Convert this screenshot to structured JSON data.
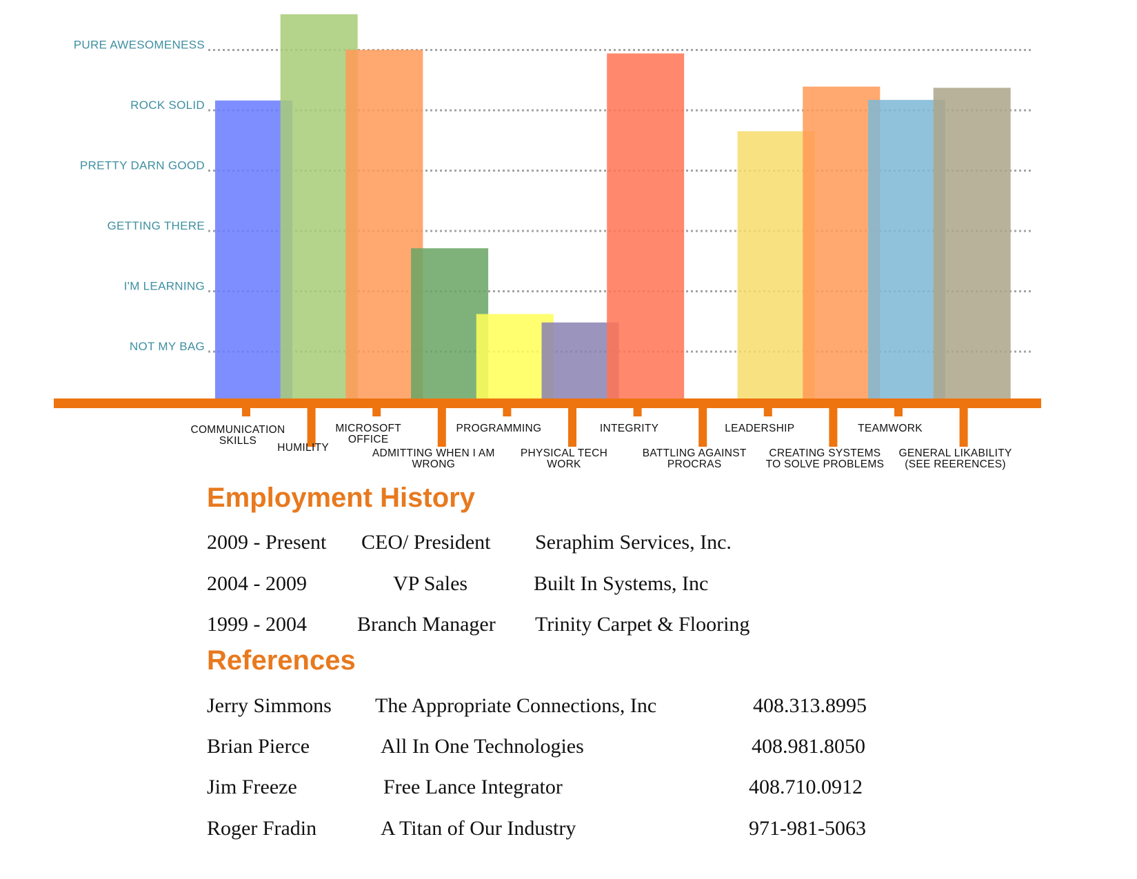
{
  "chart_data": {
    "type": "bar",
    "y_levels": [
      "NOT MY BAG",
      "I'M LEARNING",
      "GETTING THERE",
      "PRETTY DARN GOOD",
      "ROCK SOLID",
      "PURE AWESOMENESS"
    ],
    "ylim": [
      0,
      6.4
    ],
    "grid": true,
    "bars": [
      {
        "label_lines": [
          "COMMUNICATION",
          "SKILLS"
        ],
        "value": 4.94,
        "color": "#6a7bff"
      },
      {
        "label_lines": [
          "HUMILITY"
        ],
        "value": 6.37,
        "color": "#a8cc78"
      },
      {
        "label_lines": [
          "MICROSOFT",
          "OFFICE"
        ],
        "value": 5.78,
        "color": "#ff9a57"
      },
      {
        "label_lines": [
          "ADMITTING WHEN I AM",
          "WRONG"
        ],
        "value": 2.49,
        "color": "#6aa564"
      },
      {
        "label_lines": [
          "PROGRAMMING"
        ],
        "value": 1.4,
        "color": "#ffff59"
      },
      {
        "label_lines": [
          "PHYSICAL TECH",
          "WORK"
        ],
        "value": 1.26,
        "color": "#8a82b2"
      },
      {
        "label_lines": [
          "INTEGRITY"
        ],
        "value": 5.72,
        "color": "#ff7455"
      },
      {
        "label_lines": [
          "BATTLING AGAINST",
          "PROCRAS"
        ],
        "value": 0,
        "color": "#ffffff"
      },
      {
        "label_lines": [
          "LEADERSHIP"
        ],
        "value": 4.43,
        "color": "#f6dc6c"
      },
      {
        "label_lines": [
          "CREATING SYSTEMS",
          "TO SOLVE PROBLEMS"
        ],
        "value": 5.17,
        "color": "#ff9a57"
      },
      {
        "label_lines": [
          "TEAMWORK"
        ],
        "value": 4.95,
        "color": "#7fb8d6"
      },
      {
        "label_lines": [
          "GENERAL LIKABILITY",
          "(SEE REERENCES)"
        ],
        "value": 5.15,
        "color": "#ada58a"
      }
    ],
    "axis_color": "#ee7410",
    "grid_color": "#a3a3a3",
    "label_color": "#3f8fa0"
  },
  "employment": {
    "title": "Employment History",
    "rows": [
      {
        "years": "2009 - Present",
        "role": "CEO/ President",
        "company": "Seraphim Services, Inc."
      },
      {
        "years": "2004 - 2009",
        "role": "VP Sales",
        "company": "Built In Systems, Inc"
      },
      {
        "years": "1999 - 2004",
        "role": "Branch Manager",
        "company": "Trinity Carpet & Flooring"
      }
    ]
  },
  "references": {
    "title": "References",
    "rows": [
      {
        "name": "Jerry Simmons",
        "company": "The Appropriate Connections, Inc",
        "phone": "408.313.8995"
      },
      {
        "name": "Brian Pierce",
        "company": "All In One Technologies",
        "phone": "408.981.8050"
      },
      {
        "name": "Jim Freeze",
        "company": "Free Lance Integrator",
        "phone": "408.710.0912"
      },
      {
        "name": "Roger Fradin",
        "company": "A Titan of Our Industry",
        "phone": "971-981-5063"
      }
    ]
  },
  "colors": {
    "accent": "#e8791e"
  }
}
